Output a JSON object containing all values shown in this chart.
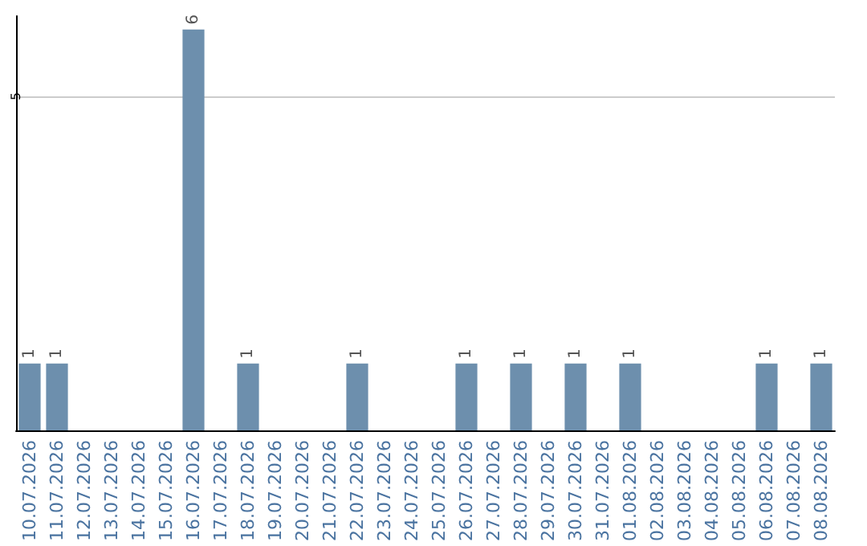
{
  "chart_data": {
    "type": "bar",
    "categories": [
      "10.07.2026",
      "11.07.2026",
      "12.07.2026",
      "13.07.2026",
      "14.07.2026",
      "15.07.2026",
      "16.07.2026",
      "17.07.2026",
      "18.07.2026",
      "19.07.2026",
      "20.07.2026",
      "21.07.2026",
      "22.07.2026",
      "23.07.2026",
      "24.07.2026",
      "25.07.2026",
      "26.07.2026",
      "27.07.2026",
      "28.07.2026",
      "29.07.2026",
      "30.07.2026",
      "31.07.2026",
      "01.08.2026",
      "02.08.2026",
      "03.08.2026",
      "04.08.2026",
      "05.08.2026",
      "06.08.2026",
      "07.08.2026",
      "08.08.2026"
    ],
    "values": [
      1,
      1,
      0,
      0,
      0,
      0,
      6,
      0,
      1,
      0,
      0,
      0,
      1,
      0,
      0,
      0,
      1,
      0,
      1,
      0,
      1,
      0,
      1,
      0,
      0,
      0,
      0,
      1,
      0,
      1
    ],
    "value_labels": [
      "1",
      "1",
      null,
      null,
      null,
      null,
      "6",
      null,
      "1",
      null,
      null,
      null,
      "1",
      null,
      null,
      null,
      "1",
      null,
      "1",
      null,
      "1",
      null,
      "1",
      null,
      null,
      null,
      null,
      "1",
      null,
      "1"
    ],
    "color": "#6d8fad",
    "ylim": [
      0,
      6.2
    ],
    "yticks": [
      5
    ],
    "grid": "y"
  }
}
